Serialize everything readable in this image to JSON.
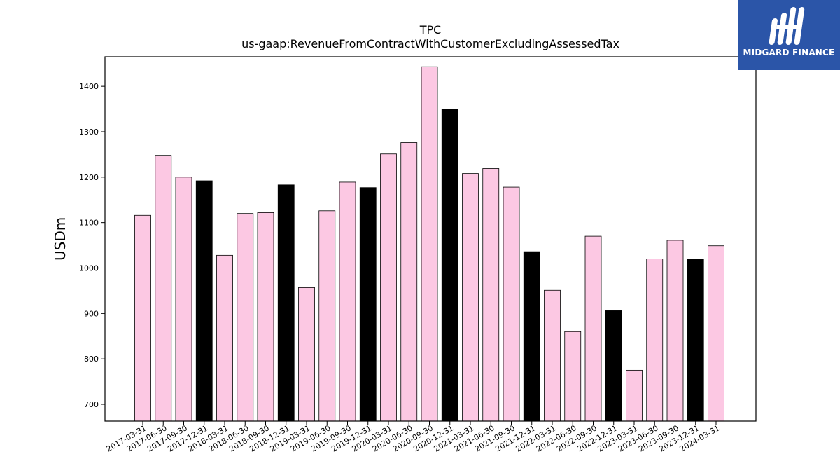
{
  "logo": {
    "text": "MIDGARD FINANCE",
    "icon": "midgard-logo-icon",
    "background": "#2b55a8"
  },
  "colors": {
    "pink": "#fcc8e3",
    "black": "#000000",
    "edge": "#000000"
  },
  "chart_data": {
    "type": "bar",
    "title": "TPC",
    "subtitle": "us-gaap:RevenueFromContractWithCustomerExcludingAssessedTax",
    "xlabel": "",
    "ylabel": "USDm",
    "ylim": [
      663,
      1465
    ],
    "yticks": [
      700,
      800,
      900,
      1000,
      1100,
      1200,
      1300,
      1400
    ],
    "grid": false,
    "categories": [
      "2017-03-31",
      "2017-06-30",
      "2017-09-30",
      "2017-12-31",
      "2018-03-31",
      "2018-06-30",
      "2018-09-30",
      "2018-12-31",
      "2019-03-31",
      "2019-06-30",
      "2019-09-30",
      "2019-12-31",
      "2020-03-31",
      "2020-06-30",
      "2020-09-30",
      "2020-12-31",
      "2021-03-31",
      "2021-06-30",
      "2021-09-30",
      "2021-12-31",
      "2022-03-31",
      "2022-06-30",
      "2022-09-30",
      "2022-12-31",
      "2023-03-31",
      "2023-06-30",
      "2023-09-30",
      "2023-12-31",
      "2024-03-31"
    ],
    "values": [
      1116,
      1248,
      1200,
      1192,
      1028,
      1120,
      1122,
      1183,
      957,
      1126,
      1189,
      1177,
      1251,
      1276,
      1443,
      1350,
      1208,
      1219,
      1178,
      1036,
      951,
      860,
      1070,
      906,
      775,
      1020,
      1061,
      1020,
      1049
    ],
    "bar_colors": [
      "pink",
      "pink",
      "pink",
      "black",
      "pink",
      "pink",
      "pink",
      "black",
      "pink",
      "pink",
      "pink",
      "black",
      "pink",
      "pink",
      "pink",
      "black",
      "pink",
      "pink",
      "pink",
      "black",
      "pink",
      "pink",
      "pink",
      "black",
      "pink",
      "pink",
      "pink",
      "black",
      "pink"
    ]
  }
}
